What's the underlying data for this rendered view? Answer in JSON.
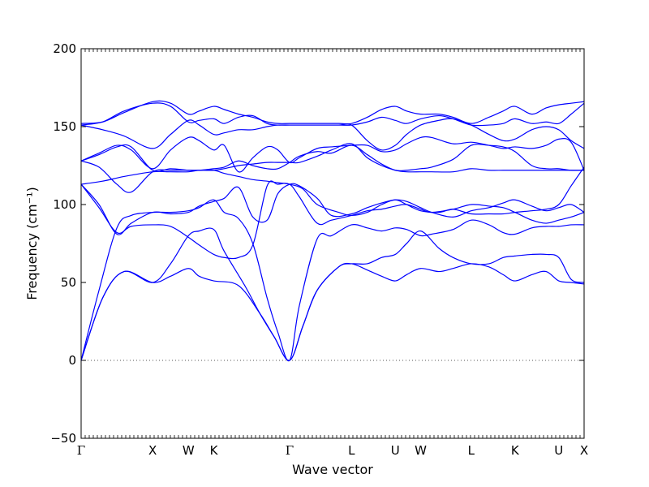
{
  "chart_data": {
    "type": "line",
    "title": "",
    "xlabel": "Wave vector",
    "ylabel": "Frequency (cm⁻¹)",
    "ylim": [
      -50,
      200
    ],
    "yticks": [
      -50,
      0,
      50,
      100,
      150,
      200
    ],
    "grid": false,
    "legend": "none",
    "line_color": "#0000ff",
    "zero_line": {
      "y": 0,
      "style": "dotted",
      "color": "#555555"
    },
    "high_symmetry_points": [
      {
        "label": "Γ",
        "x": 0.0
      },
      {
        "label": "X",
        "x": 1.0
      },
      {
        "label": "W",
        "x": 1.5
      },
      {
        "label": "K",
        "x": 1.854
      },
      {
        "label": "Γ",
        "x": 2.914
      },
      {
        "label": "L",
        "x": 3.78
      },
      {
        "label": "U",
        "x": 4.392
      },
      {
        "label": "W",
        "x": 4.746
      },
      {
        "label": "L",
        "x": 5.453
      },
      {
        "label": "K",
        "x": 6.065
      },
      {
        "label": "U",
        "x": 6.677
      },
      {
        "label": "X",
        "x": 7.031
      }
    ],
    "xlim": [
      0,
      7.031
    ],
    "series": [
      {
        "x": [
          0,
          0.3,
          0.6,
          1.0,
          1.25,
          1.5,
          1.65,
          1.854,
          2.2,
          2.5,
          2.7,
          2.914,
          3.1,
          3.3,
          3.6,
          3.78,
          4.0,
          4.2,
          4.392,
          4.55,
          4.746,
          5.0,
          5.2,
          5.453,
          5.7,
          5.9,
          6.065,
          6.3,
          6.5,
          6.677,
          6.85,
          7.031
        ],
        "y": [
          0,
          40,
          57,
          50,
          54,
          59,
          54,
          51,
          48,
          30,
          15,
          0,
          22,
          45,
          60,
          62,
          58,
          54,
          51,
          55,
          59,
          57,
          59,
          62,
          60,
          55,
          51,
          55,
          57,
          51,
          50,
          49
        ]
      },
      {
        "x": [
          0,
          0.3,
          0.6,
          1.0,
          1.25,
          1.5,
          1.65,
          1.854,
          2.0,
          2.3,
          2.5,
          2.7,
          2.914,
          3.1,
          3.3,
          3.6,
          3.78,
          4.0,
          4.2,
          4.392,
          4.55,
          4.746,
          5.0,
          5.2,
          5.453,
          5.7,
          5.9,
          6.065,
          6.3,
          6.5,
          6.677,
          6.85,
          7.031
        ],
        "y": [
          0,
          40,
          57,
          50,
          62,
          80,
          83,
          84,
          70,
          47,
          30,
          15,
          0,
          22,
          45,
          60,
          62,
          62,
          66,
          68,
          75,
          83,
          72,
          66,
          62,
          62,
          66,
          67,
          68,
          68,
          66,
          52,
          50
        ]
      },
      {
        "x": [
          0,
          0.25,
          0.5,
          0.7,
          1.0,
          1.25,
          1.5,
          1.65,
          1.854,
          2.0,
          2.2,
          2.4,
          2.6,
          2.75,
          2.914,
          3.05,
          3.3,
          3.5,
          3.78,
          4.0,
          4.2,
          4.392,
          4.55,
          4.746,
          4.9,
          5.2,
          5.453,
          5.7,
          5.9,
          6.065,
          6.3,
          6.5,
          6.677,
          6.85,
          7.031
        ],
        "y": [
          0,
          45,
          85,
          93,
          95,
          95,
          96,
          98,
          103,
          95,
          91,
          75,
          40,
          18,
          0,
          35,
          78,
          80,
          87,
          85,
          83,
          85,
          84,
          80,
          81,
          84,
          90,
          87,
          82,
          81,
          85,
          86,
          86,
          87,
          87
        ]
      },
      {
        "x": [
          0,
          0.25,
          0.5,
          0.7,
          1.0,
          1.25,
          1.5,
          1.65,
          1.854,
          2.0,
          2.2,
          2.4,
          2.6,
          2.75,
          2.914,
          3.05,
          3.3,
          3.5,
          3.78,
          4.0,
          4.2,
          4.392,
          4.55,
          4.746,
          4.9,
          5.2,
          5.453,
          5.7,
          5.9,
          6.065,
          6.3,
          6.5,
          6.677,
          6.85,
          7.031
        ],
        "y": [
          113,
          98,
          82,
          86,
          87,
          86,
          79,
          74,
          68,
          66,
          66,
          74,
          112,
          113,
          113,
          105,
          88,
          90,
          93,
          96,
          97,
          99,
          100,
          97,
          95,
          97,
          100,
          99,
          98,
          95,
          90,
          88,
          90,
          92,
          95
        ]
      },
      {
        "x": [
          0,
          0.25,
          0.5,
          0.7,
          1.0,
          1.25,
          1.5,
          1.65,
          1.854,
          2.0,
          2.2,
          2.4,
          2.6,
          2.75,
          2.914,
          3.05,
          3.3,
          3.5,
          3.78,
          4.0,
          4.2,
          4.392,
          4.55,
          4.746,
          4.9,
          5.2,
          5.453,
          5.7,
          5.9,
          6.065,
          6.3,
          6.5,
          6.677,
          6.85,
          7.031
        ],
        "y": [
          113,
          100,
          81,
          88,
          95,
          94,
          95,
          99,
          102,
          104,
          111,
          92,
          90,
          107,
          113,
          112,
          104,
          93,
          94,
          98,
          101,
          103,
          102,
          98,
          95,
          92,
          96,
          98,
          101,
          103,
          99,
          96,
          98,
          100,
          95
        ]
      },
      {
        "x": [
          0,
          0.3,
          0.6,
          1.0,
          1.25,
          1.5,
          1.65,
          1.854,
          2.0,
          2.2,
          2.4,
          2.6,
          2.75,
          2.914,
          3.1,
          3.3,
          3.6,
          3.78,
          4.0,
          4.2,
          4.392,
          4.55,
          4.746,
          5.0,
          5.2,
          5.453,
          5.7,
          5.9,
          6.065,
          6.3,
          6.5,
          6.677,
          6.85,
          7.031
        ],
        "y": [
          113,
          115,
          118,
          121,
          121,
          121,
          122,
          122,
          120,
          118,
          116,
          115,
          114,
          113,
          110,
          100,
          95,
          93,
          95,
          100,
          103,
          100,
          96,
          95,
          97,
          94,
          94,
          94,
          95,
          96,
          97,
          100,
          112,
          124
        ]
      },
      {
        "x": [
          0,
          0.25,
          0.5,
          0.7,
          1.0,
          1.25,
          1.5,
          1.65,
          1.854,
          2.0,
          2.2,
          2.4,
          2.6,
          2.75,
          2.914,
          3.05,
          3.3,
          3.5,
          3.78,
          4.0,
          4.2,
          4.392,
          4.55,
          4.746,
          4.9,
          5.2,
          5.453,
          5.7,
          5.9,
          6.065,
          6.3,
          6.5,
          6.677,
          6.85,
          7.031
        ],
        "y": [
          128,
          124,
          113,
          108,
          121,
          122,
          122,
          122,
          122,
          123,
          125,
          126,
          127,
          127,
          127,
          127,
          131,
          135,
          139,
          130,
          125,
          122,
          121,
          121,
          121,
          121,
          123,
          122,
          122,
          122,
          122,
          122,
          122,
          122,
          122
        ]
      },
      {
        "x": [
          0,
          0.25,
          0.5,
          0.7,
          1.0,
          1.25,
          1.5,
          1.65,
          1.854,
          2.0,
          2.2,
          2.4,
          2.6,
          2.75,
          2.914,
          3.05,
          3.3,
          3.5,
          3.78,
          4.0,
          4.2,
          4.392,
          4.55,
          4.746,
          4.9,
          5.2,
          5.453,
          5.7,
          5.9,
          6.065,
          6.3,
          6.5,
          6.677,
          6.85,
          7.031
        ],
        "y": [
          128,
          132,
          137,
          137,
          122,
          123,
          122,
          122,
          123,
          124,
          128,
          125,
          123,
          123,
          127,
          131,
          134,
          133,
          138,
          132,
          126,
          122,
          122,
          123,
          124,
          129,
          138,
          138,
          137,
          134,
          125,
          123,
          123,
          122,
          122
        ]
      },
      {
        "x": [
          0,
          0.25,
          0.5,
          0.7,
          1.0,
          1.25,
          1.5,
          1.65,
          1.854,
          2.0,
          2.2,
          2.4,
          2.6,
          2.75,
          2.914,
          3.05,
          3.3,
          3.5,
          3.78,
          4.0,
          4.2,
          4.392,
          4.55,
          4.746,
          4.9,
          5.2,
          5.453,
          5.7,
          5.9,
          6.065,
          6.3,
          6.5,
          6.677,
          6.85,
          7.031
        ],
        "y": [
          128,
          133,
          138,
          135,
          123,
          135,
          143,
          141,
          135,
          138,
          121,
          130,
          137,
          135,
          127,
          130,
          136,
          137,
          138,
          138,
          134,
          135,
          139,
          143,
          143,
          139,
          140,
          138,
          136,
          137,
          136,
          138,
          142,
          140,
          122
        ]
      },
      {
        "x": [
          0,
          0.3,
          0.6,
          1.0,
          1.25,
          1.5,
          1.65,
          1.854,
          2.0,
          2.2,
          2.4,
          2.6,
          2.75,
          2.914,
          3.1,
          3.3,
          3.6,
          3.78,
          4.0,
          4.2,
          4.392,
          4.55,
          4.746,
          5.0,
          5.2,
          5.453,
          5.7,
          5.9,
          6.065,
          6.3,
          6.5,
          6.677,
          6.85,
          7.031
        ],
        "y": [
          151,
          148,
          144,
          136,
          145,
          154,
          151,
          145,
          146,
          148,
          148,
          150,
          151,
          151,
          151,
          151,
          151,
          151,
          141,
          135,
          138,
          145,
          151,
          154,
          155,
          151,
          145,
          141,
          142,
          148,
          150,
          148,
          141,
          136
        ]
      },
      {
        "x": [
          0,
          0.3,
          0.6,
          1.0,
          1.25,
          1.5,
          1.65,
          1.854,
          2.0,
          2.2,
          2.4,
          2.6,
          2.75,
          2.914,
          3.1,
          3.3,
          3.6,
          3.78,
          4.0,
          4.2,
          4.392,
          4.55,
          4.746,
          5.0,
          5.2,
          5.453,
          5.7,
          5.9,
          6.065,
          6.3,
          6.5,
          6.677,
          6.85,
          7.031
        ],
        "y": [
          151,
          153,
          160,
          165,
          163,
          153,
          154,
          155,
          152,
          156,
          157,
          152,
          151,
          151,
          151,
          151,
          151,
          151,
          153,
          156,
          154,
          152,
          155,
          157,
          155,
          151,
          151,
          152,
          155,
          152,
          153,
          152,
          158,
          165
        ]
      },
      {
        "x": [
          0,
          0.3,
          0.6,
          1.0,
          1.25,
          1.5,
          1.65,
          1.854,
          2.0,
          2.2,
          2.4,
          2.6,
          2.75,
          2.914,
          3.1,
          3.3,
          3.6,
          3.78,
          4.0,
          4.2,
          4.392,
          4.55,
          4.746,
          5.0,
          5.2,
          5.453,
          5.7,
          5.9,
          6.065,
          6.3,
          6.5,
          6.677,
          6.85,
          7.031
        ],
        "y": [
          152,
          153,
          159,
          166,
          165,
          158,
          160,
          163,
          161,
          158,
          156,
          153,
          152,
          152,
          152,
          152,
          152,
          152,
          156,
          161,
          163,
          160,
          158,
          158,
          156,
          152,
          156,
          160,
          163,
          158,
          162,
          164,
          165,
          166
        ]
      }
    ]
  }
}
